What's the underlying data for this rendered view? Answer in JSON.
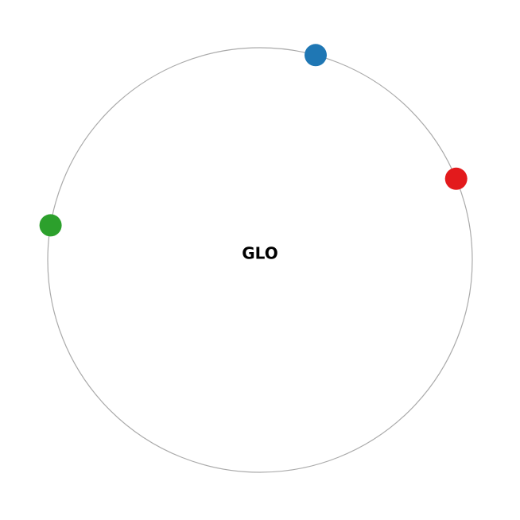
{
  "center": {
    "label": "GLO"
  },
  "ring": {
    "color": "#aaaaaa"
  },
  "nodes": [
    {
      "id": "node-blue",
      "color": "#1f77b4",
      "angle_deg": 74.8
    },
    {
      "id": "node-red",
      "color": "#e31a1c",
      "angle_deg": 22.5
    },
    {
      "id": "node-green",
      "color": "#2ca02c",
      "angle_deg": 170.6
    }
  ]
}
